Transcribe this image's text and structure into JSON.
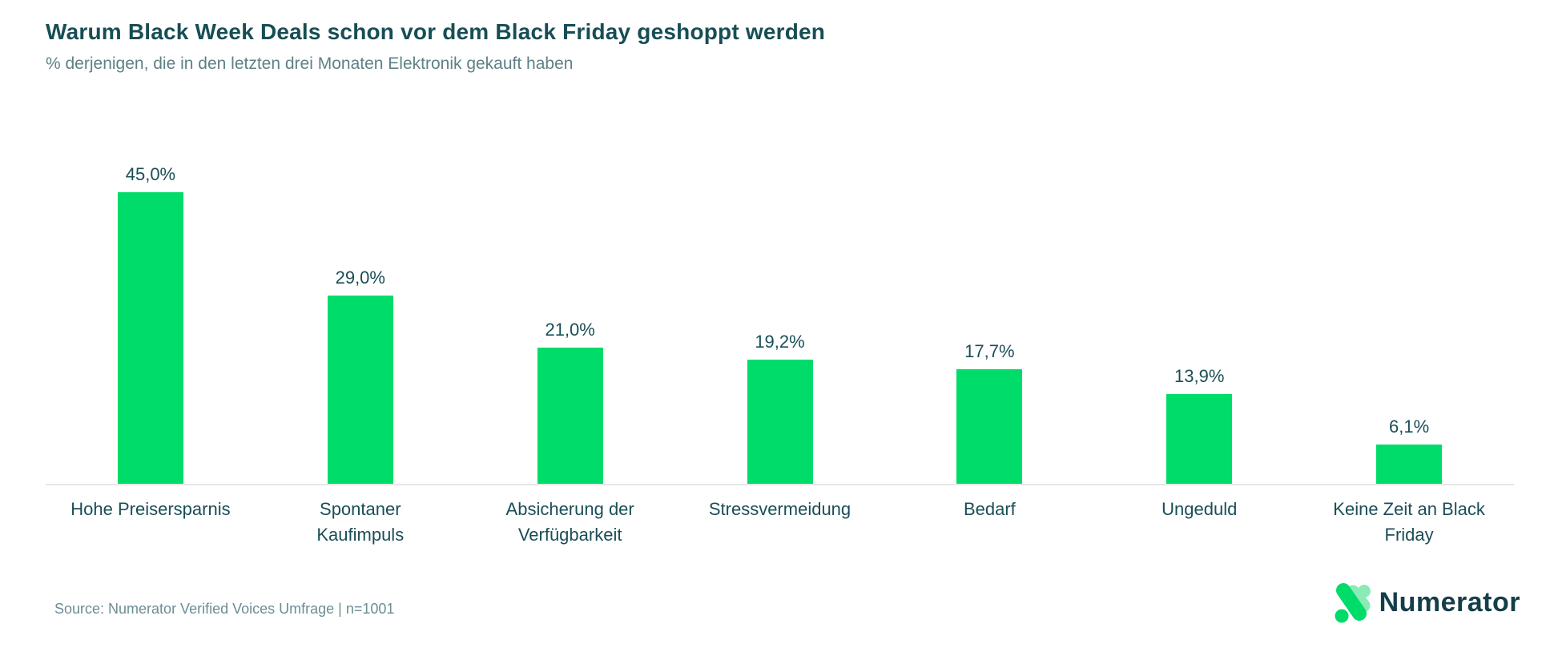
{
  "header": {
    "title": "Warum Black Week Deals schon vor dem Black Friday geshoppt werden",
    "subtitle": "% derjenigen, die in den letzten drei Monaten Elektronik gekauft haben"
  },
  "footer": {
    "source": "Source: Numerator Verified Voices Umfrage | n=1001",
    "logo_text": "Numerator"
  },
  "colors": {
    "bar_green": "#00DC69",
    "logo_mint": "#8BEBB4",
    "title_teal": "#174E55",
    "subtitle_gray_teal": "#5E8187",
    "source_gray_teal": "#6B8E93",
    "axis_line": "#E7E7E7"
  },
  "chart_data": {
    "type": "bar",
    "title": "Warum Black Week Deals schon vor dem Black Friday geshoppt werden",
    "subtitle": "% derjenigen, die in den letzten drei Monaten Elektronik gekauft haben",
    "categories": [
      "Hohe Preisersparnis",
      "Spontaner Kaufimpuls",
      "Absicherung der Verfügbarkeit",
      "Stressvermeidung",
      "Bedarf",
      "Ungeduld",
      "Keine Zeit an Black Friday"
    ],
    "values": [
      45.0,
      29.0,
      21.0,
      19.2,
      17.7,
      13.9,
      6.1
    ],
    "value_labels": [
      "45,0%",
      "29,0%",
      "21,0%",
      "19,2%",
      "17,7%",
      "13,9%",
      "6,1%"
    ],
    "unit": "%",
    "xlabel": "",
    "ylabel": "",
    "ylim": [
      0,
      50
    ],
    "grid": false,
    "legend": "none",
    "bar_color": "#00DC69",
    "value_label_position": "above-bar"
  }
}
